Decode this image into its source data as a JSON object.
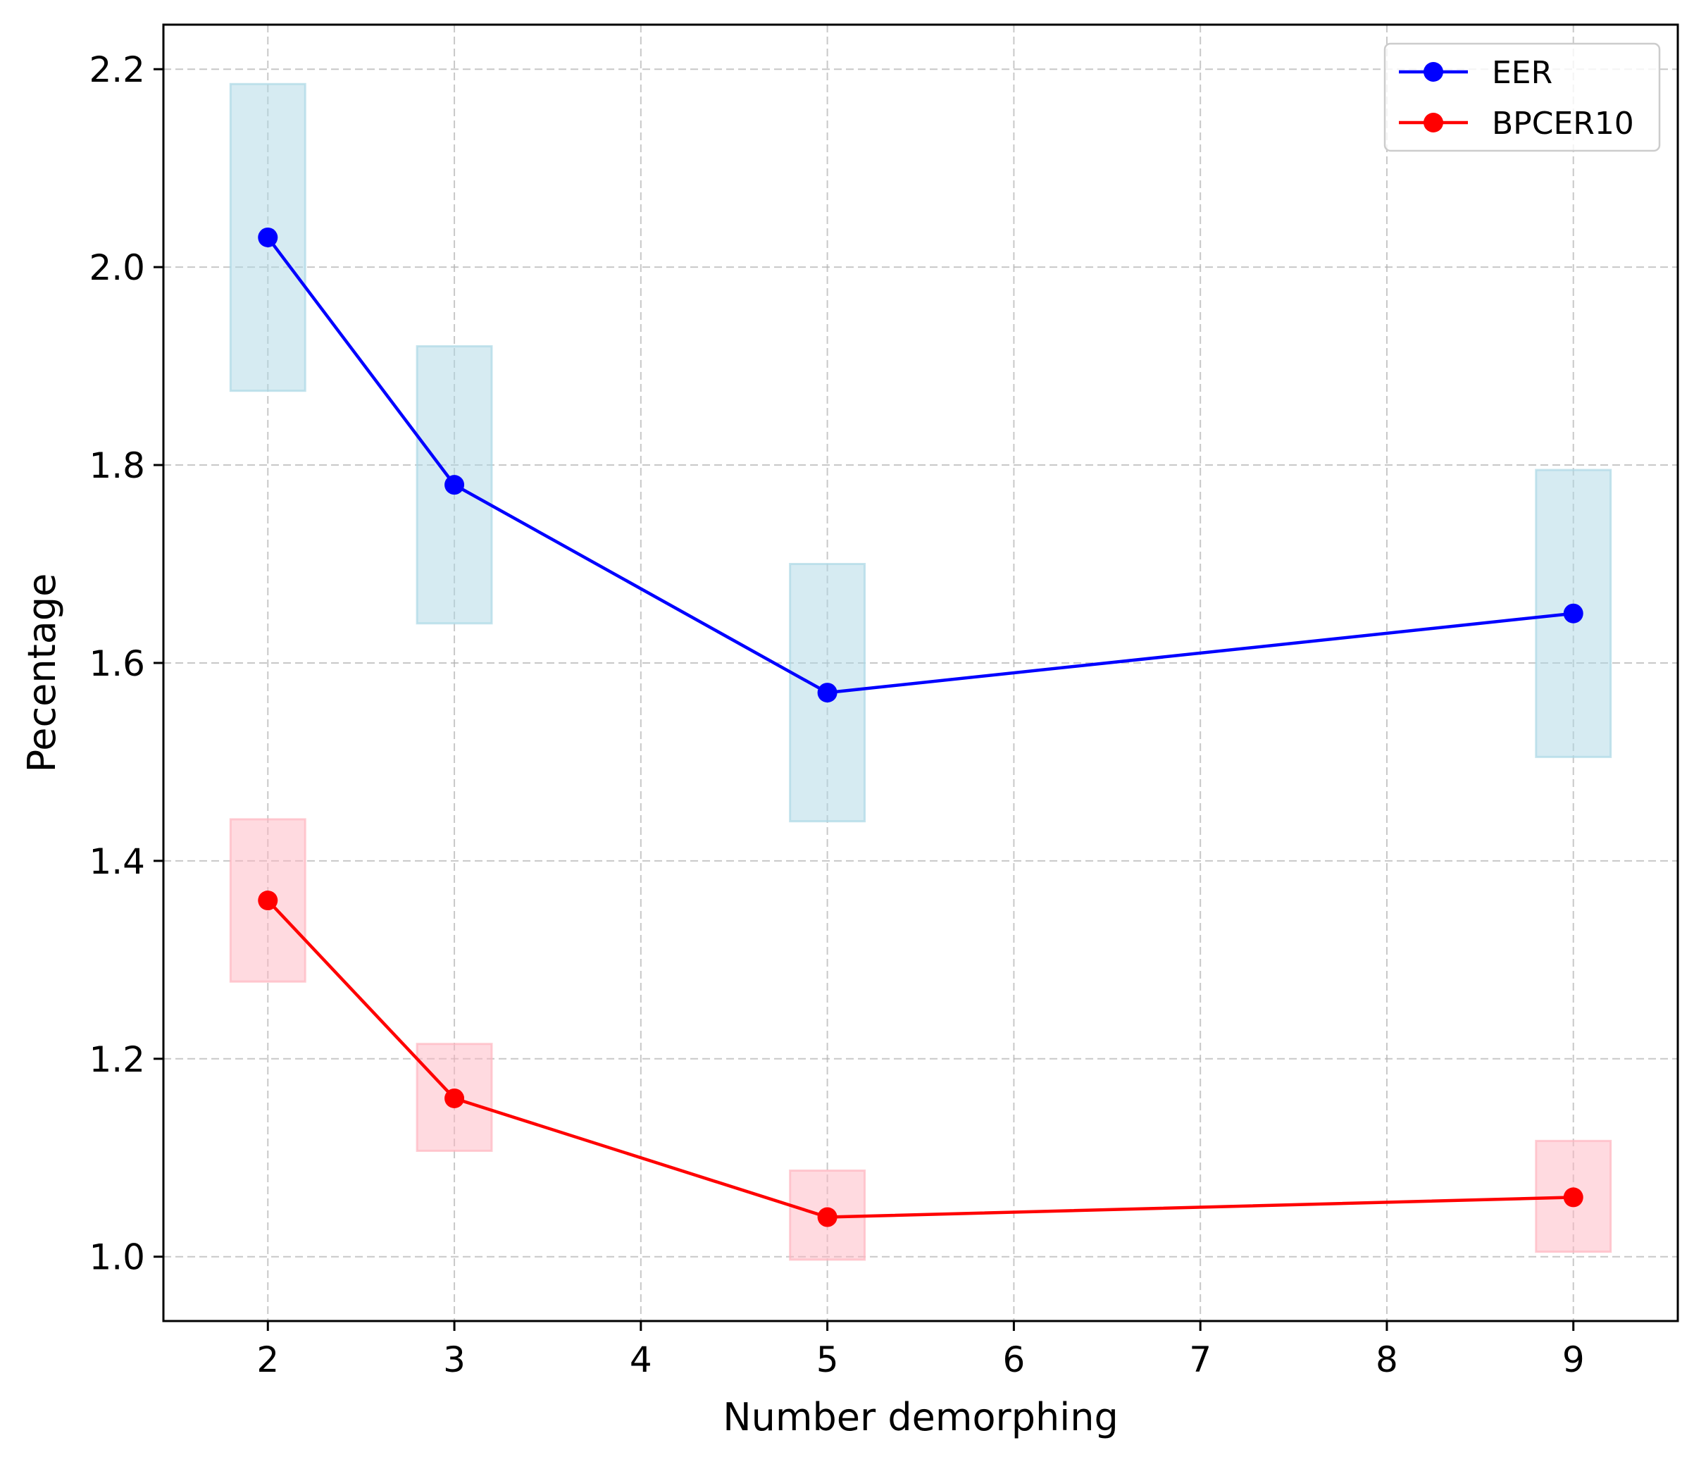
{
  "chart_data": {
    "type": "line",
    "title": "",
    "xlabel": "Number demorphing",
    "ylabel": "Pecentage",
    "xlim": [
      1.44,
      9.56
    ],
    "ylim": [
      0.935,
      2.245
    ],
    "x_ticks": [
      2,
      3,
      4,
      5,
      6,
      7,
      8,
      9
    ],
    "y_ticks": [
      1.0,
      1.2,
      1.4,
      1.6,
      1.8,
      2.0,
      2.2
    ],
    "x_tick_labels": [
      "2",
      "3",
      "4",
      "5",
      "6",
      "7",
      "8",
      "9"
    ],
    "y_tick_labels": [
      "1.0",
      "1.2",
      "1.4",
      "1.6",
      "1.8",
      "2.0",
      "2.2"
    ],
    "grid": true,
    "legend_position": "top-right",
    "x": [
      2,
      3,
      5,
      9
    ],
    "series": [
      {
        "name": "EER",
        "color": "#0000ff",
        "band_color": "#add8e6",
        "values": [
          2.03,
          1.78,
          1.57,
          1.65
        ],
        "band_low": [
          1.875,
          1.64,
          1.44,
          1.505
        ],
        "band_high": [
          2.185,
          1.92,
          1.7,
          1.795
        ]
      },
      {
        "name": "BPCER10",
        "color": "#ff0000",
        "band_color": "#ffb6c1",
        "values": [
          1.36,
          1.16,
          1.04,
          1.06
        ],
        "band_low": [
          1.278,
          1.107,
          0.997,
          1.005
        ],
        "band_high": [
          1.442,
          1.215,
          1.087,
          1.117
        ]
      }
    ]
  }
}
